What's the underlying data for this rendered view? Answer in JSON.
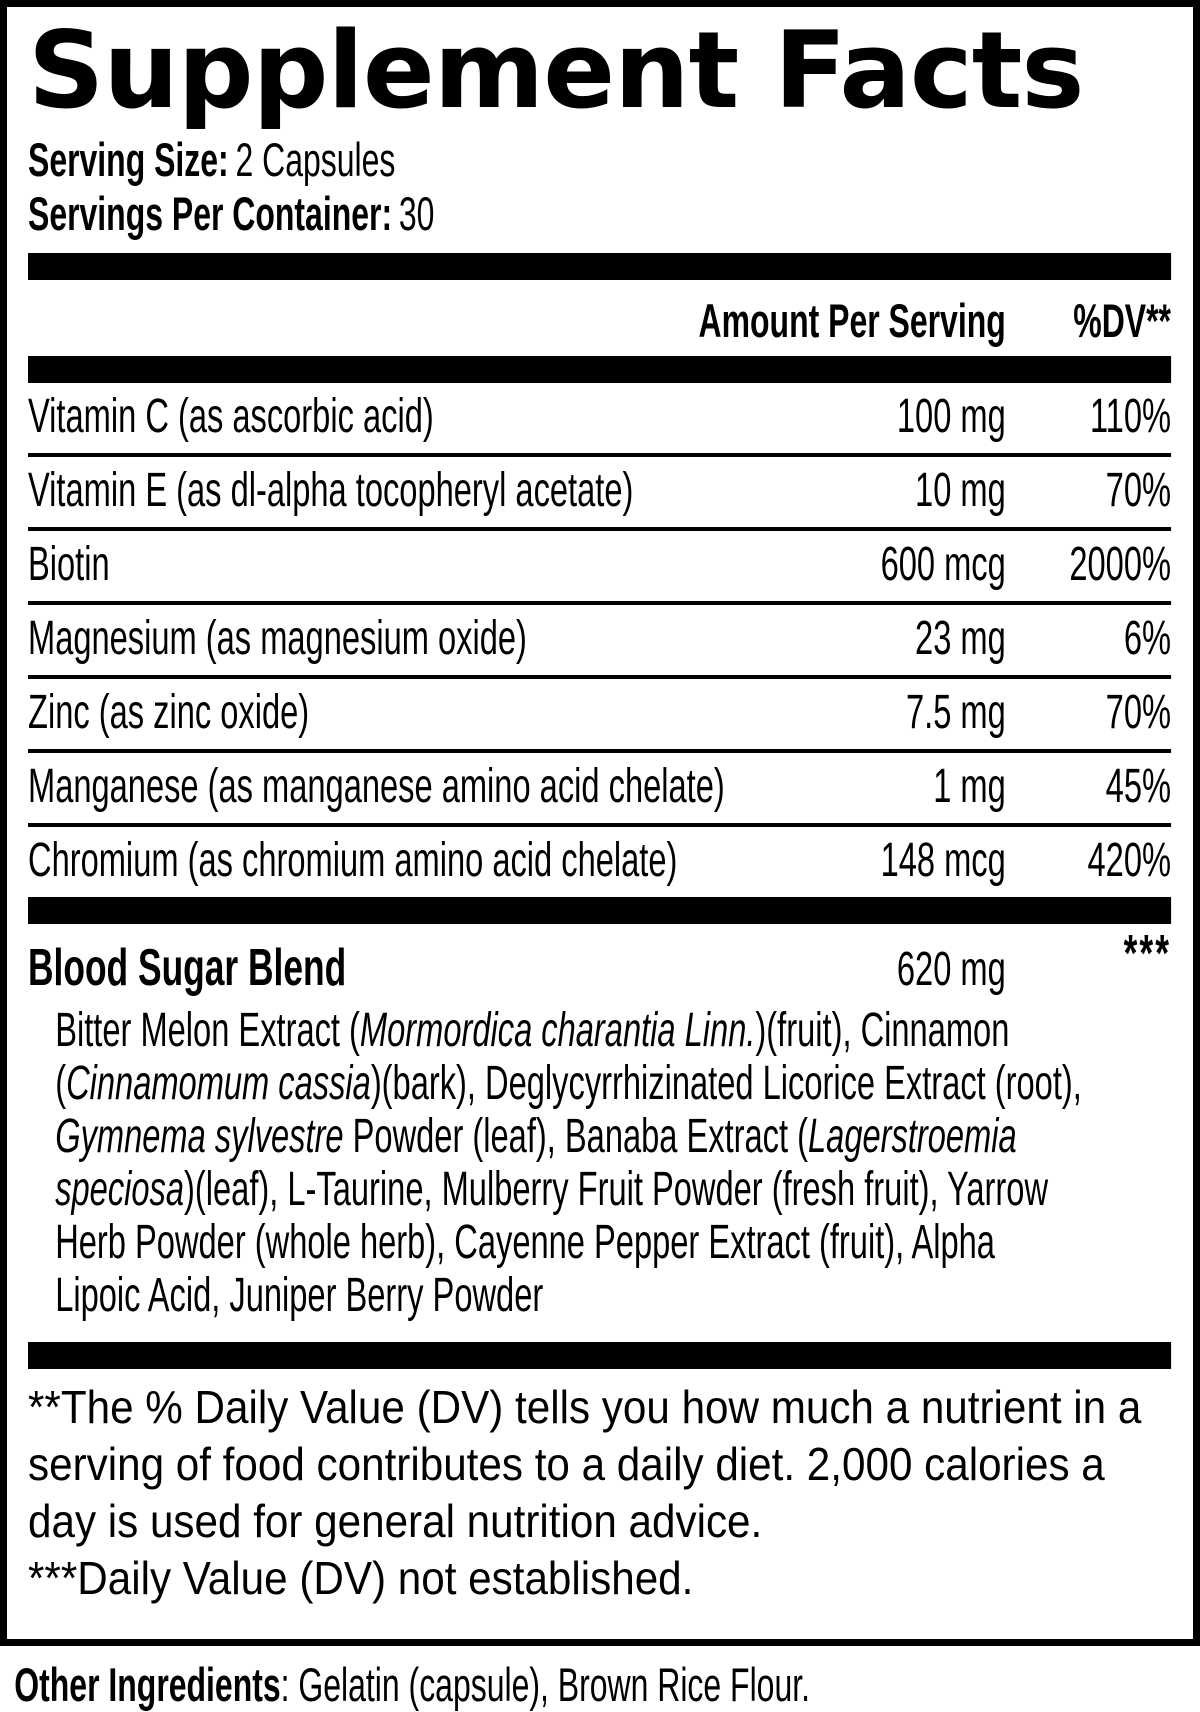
{
  "title": "Supplement Facts",
  "serving": {
    "size_label": "Serving Size:",
    "size_value": "2 Capsules",
    "container_label": "Servings Per Container:",
    "container_value": "30"
  },
  "table": {
    "amount_header": "Amount Per Serving",
    "dv_header": "%DV**",
    "rows": [
      {
        "name": "Vitamin C (as ascorbic acid)",
        "amount": "100 mg",
        "dv": "110%"
      },
      {
        "name": "Vitamin E (as dl-alpha tocopheryl acetate)",
        "amount": "10 mg",
        "dv": "70%"
      },
      {
        "name": "Biotin",
        "amount": "600 mcg",
        "dv": "2000%"
      },
      {
        "name": "Magnesium (as magnesium oxide)",
        "amount": "23 mg",
        "dv": "6%"
      },
      {
        "name": "Zinc (as zinc oxide)",
        "amount": "7.5 mg",
        "dv": "70%"
      },
      {
        "name": "Manganese (as manganese amino acid chelate)",
        "amount": "1 mg",
        "dv": "45%"
      },
      {
        "name": "Chromium (as chromium amino acid chelate)",
        "amount": "148 mcg",
        "dv": "420%"
      }
    ]
  },
  "blend": {
    "name": "Blood Sugar Blend",
    "amount": "620 mg",
    "dv": "***",
    "description_segments": [
      {
        "text": "Bitter Melon Extract (",
        "italic": false
      },
      {
        "text": "Mormordica charantia Linn.",
        "italic": true
      },
      {
        "text": ")(fruit), Cinnamon (",
        "italic": false
      },
      {
        "text": "Cinnamomum cassia",
        "italic": true
      },
      {
        "text": ")(bark), Deglycyrrhizinated Licorice Extract (root), ",
        "italic": false
      },
      {
        "text": "Gymnema sylvestre",
        "italic": true
      },
      {
        "text": " Powder (leaf), Banaba Extract (",
        "italic": false
      },
      {
        "text": "Lagerstroemia speciosa",
        "italic": true
      },
      {
        "text": ")(leaf), L-Taurine, Mulberry Fruit Powder (fresh fruit), Yarrow Herb Powder (whole herb), Cayenne Pepper Extract (fruit), Alpha Lipoic Acid, Juniper Berry Powder",
        "italic": false
      }
    ]
  },
  "footnotes": {
    "dv_note": "**The % Daily Value (DV) tells you how much a nutrient in a serving of food contributes to a daily diet. 2,000 calories a day is used for general nutrition advice.",
    "not_established": "***Daily Value (DV) not established."
  },
  "other_ingredients": {
    "label": "Other Ingredients",
    "value": ": Gelatin (capsule), Brown Rice Flour."
  },
  "colors": {
    "text": "#000000",
    "background": "#ffffff"
  }
}
